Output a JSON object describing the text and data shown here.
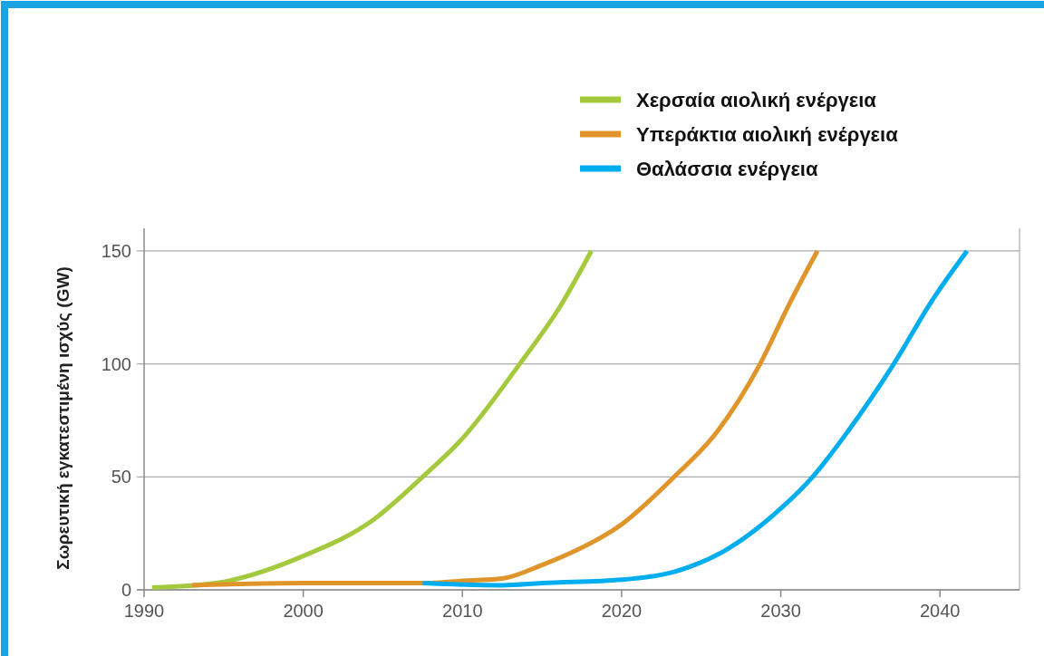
{
  "chart_data": {
    "type": "line",
    "ylabel": "Σωρευτική εγκατεστιμένη ισχύς (GW)",
    "xlim": [
      1990,
      2045
    ],
    "xticks": [
      1990,
      2000,
      2010,
      2020,
      2030,
      2040
    ],
    "ylim": [
      0,
      160
    ],
    "yticks": [
      0,
      50,
      100,
      150
    ],
    "grid": "y",
    "legend": "top right",
    "line_style": "solid",
    "marker": "none",
    "series": [
      {
        "name": "Χερσαία αιολική ενέργεια",
        "color": "#a5c93c",
        "x": [
          1990.5,
          1994.5,
          2000,
          2004.4,
          2007.5,
          2010,
          2013.6,
          2016.1,
          2018.1
        ],
        "values": [
          1,
          3,
          15,
          31,
          50,
          67,
          100,
          125,
          150
        ]
      },
      {
        "name": "Υπεράκτια αιολική ενέργεια",
        "color": "#e0952b",
        "x": [
          1993,
          2000,
          2008,
          2010,
          2012.5,
          2015,
          2016.7,
          2020,
          2023.3,
          2026,
          2028.7,
          2030.5,
          2032.3
        ],
        "values": [
          2,
          3,
          3,
          4,
          5,
          11,
          16,
          29,
          50,
          70,
          100,
          126,
          150
        ]
      },
      {
        "name": "Θαλάσσια ενέργεια",
        "color": "#00aeef",
        "x": [
          2007.5,
          2012.5,
          2015,
          2020,
          2023.3,
          2026.4,
          2030,
          2032,
          2034.2,
          2037.1,
          2039.5,
          2041.7
        ],
        "values": [
          3,
          2,
          3,
          4.5,
          8,
          17,
          36,
          50,
          70,
          100,
          128,
          150
        ]
      }
    ]
  }
}
